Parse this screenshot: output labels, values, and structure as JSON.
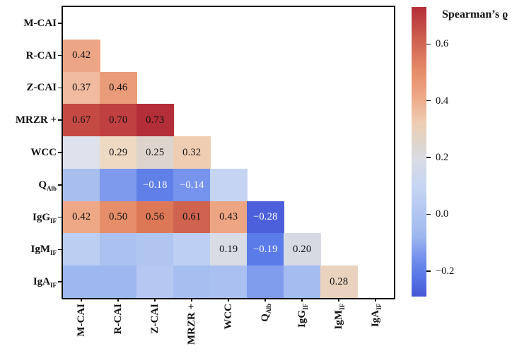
{
  "chart_data": {
    "type": "heatmap",
    "subtype": "lower-triangular-correlation-matrix",
    "categories": [
      "M-CAI",
      "R-CAI",
      "Z-CAI",
      "MRZR +",
      "WCC",
      "QAlb",
      "IgGIF",
      "IgMIF",
      "IgAIF"
    ],
    "categories_display": [
      {
        "main": "M-CAI",
        "sub": ""
      },
      {
        "main": "R-CAI",
        "sub": ""
      },
      {
        "main": "Z-CAI",
        "sub": ""
      },
      {
        "main": "MRZR +",
        "sub": ""
      },
      {
        "main": "WCC",
        "sub": ""
      },
      {
        "main": "Q",
        "sub": "Alb"
      },
      {
        "main": "IgG",
        "sub": "IF"
      },
      {
        "main": "IgM",
        "sub": "IF"
      },
      {
        "main": "IgA",
        "sub": "IF"
      }
    ],
    "cells": [
      {
        "row": 1,
        "col": 0,
        "value": 0.42,
        "label": "0.42",
        "color": "#eda685",
        "text_color": "#111111"
      },
      {
        "row": 2,
        "col": 0,
        "value": 0.37,
        "label": "0.37",
        "color": "#f0bb9e",
        "text_color": "#111111"
      },
      {
        "row": 2,
        "col": 1,
        "value": 0.46,
        "label": "0.46",
        "color": "#ea9b79",
        "text_color": "#111111"
      },
      {
        "row": 3,
        "col": 0,
        "value": 0.67,
        "label": "0.67",
        "color": "#c64a44",
        "text_color": "#111111"
      },
      {
        "row": 3,
        "col": 1,
        "value": 0.7,
        "label": "0.70",
        "color": "#c03f40",
        "text_color": "#111111"
      },
      {
        "row": 3,
        "col": 2,
        "value": 0.73,
        "label": "0.73",
        "color": "#b32e38",
        "text_color": "#111111"
      },
      {
        "row": 4,
        "col": 0,
        "value": null,
        "label": "",
        "color": "#dde2ec",
        "text_color": "#111111"
      },
      {
        "row": 4,
        "col": 1,
        "value": 0.29,
        "label": "0.29",
        "color": "#eed9c3",
        "text_color": "#111111"
      },
      {
        "row": 4,
        "col": 2,
        "value": 0.25,
        "label": "0.25",
        "color": "#ddd5cd",
        "text_color": "#111111"
      },
      {
        "row": 4,
        "col": 3,
        "value": 0.32,
        "label": "0.32",
        "color": "#eecdb3",
        "text_color": "#111111"
      },
      {
        "row": 5,
        "col": 0,
        "value": null,
        "label": "",
        "color": "#a8bfee",
        "text_color": "#111111"
      },
      {
        "row": 5,
        "col": 1,
        "value": null,
        "label": "",
        "color": "#7e9aec",
        "text_color": "#111111"
      },
      {
        "row": 5,
        "col": 2,
        "value": -0.18,
        "label": "−0.18",
        "color": "#6080e8",
        "text_color": "#ffffff"
      },
      {
        "row": 5,
        "col": 3,
        "value": -0.14,
        "label": "−0.14",
        "color": "#7693ed",
        "text_color": "#ffffff"
      },
      {
        "row": 5,
        "col": 4,
        "value": null,
        "label": "",
        "color": "#c5d4f2",
        "text_color": "#111111"
      },
      {
        "row": 6,
        "col": 0,
        "value": 0.42,
        "label": "0.42",
        "color": "#efa886",
        "text_color": "#111111"
      },
      {
        "row": 6,
        "col": 1,
        "value": 0.5,
        "label": "0.50",
        "color": "#e68e69",
        "text_color": "#111111"
      },
      {
        "row": 6,
        "col": 2,
        "value": 0.56,
        "label": "0.56",
        "color": "#dd7857",
        "text_color": "#111111"
      },
      {
        "row": 6,
        "col": 3,
        "value": 0.61,
        "label": "0.61",
        "color": "#cf6350",
        "text_color": "#111111"
      },
      {
        "row": 6,
        "col": 4,
        "value": 0.43,
        "label": "0.43",
        "color": "#eea583",
        "text_color": "#111111"
      },
      {
        "row": 6,
        "col": 5,
        "value": -0.28,
        "label": "−0.28",
        "color": "#4b60da",
        "text_color": "#ffffff"
      },
      {
        "row": 7,
        "col": 0,
        "value": null,
        "label": "",
        "color": "#bccef2",
        "text_color": "#111111"
      },
      {
        "row": 7,
        "col": 1,
        "value": null,
        "label": "",
        "color": "#abc2f0",
        "text_color": "#111111"
      },
      {
        "row": 7,
        "col": 2,
        "value": null,
        "label": "",
        "color": "#b0c6f1",
        "text_color": "#111111"
      },
      {
        "row": 7,
        "col": 3,
        "value": null,
        "label": "",
        "color": "#bdd0f3",
        "text_color": "#111111"
      },
      {
        "row": 7,
        "col": 4,
        "value": 0.19,
        "label": "0.19",
        "color": "#d9dce5",
        "text_color": "#111111"
      },
      {
        "row": 7,
        "col": 5,
        "value": -0.19,
        "label": "−0.19",
        "color": "#5b7be8",
        "text_color": "#ffffff"
      },
      {
        "row": 7,
        "col": 6,
        "value": 0.2,
        "label": "0.20",
        "color": "#d6dae3",
        "text_color": "#111111"
      },
      {
        "row": 8,
        "col": 0,
        "value": null,
        "label": "",
        "color": "#9db7ef",
        "text_color": "#111111"
      },
      {
        "row": 8,
        "col": 1,
        "value": null,
        "label": "",
        "color": "#9eb8ef",
        "text_color": "#111111"
      },
      {
        "row": 8,
        "col": 2,
        "value": null,
        "label": "",
        "color": "#b4c8f1",
        "text_color": "#111111"
      },
      {
        "row": 8,
        "col": 3,
        "value": null,
        "label": "",
        "color": "#a7bef0",
        "text_color": "#111111"
      },
      {
        "row": 8,
        "col": 4,
        "value": null,
        "label": "",
        "color": "#aac0f0",
        "text_color": "#111111"
      },
      {
        "row": 8,
        "col": 5,
        "value": null,
        "label": "",
        "color": "#809ded",
        "text_color": "#111111"
      },
      {
        "row": 8,
        "col": 6,
        "value": null,
        "label": "",
        "color": "#a4bcf0",
        "text_color": "#111111"
      },
      {
        "row": 8,
        "col": 7,
        "value": 0.28,
        "label": "0.28",
        "color": "#e9d3be",
        "text_color": "#111111"
      }
    ],
    "colorbar": {
      "label": "Spearman’s ϱ",
      "vmin": -0.29,
      "vmax": 0.73,
      "ticks": [
        {
          "v": 0.6,
          "label": "0.6"
        },
        {
          "v": 0.4,
          "label": "0.4"
        },
        {
          "v": 0.2,
          "label": "0.2"
        },
        {
          "v": 0.0,
          "label": "0.0"
        },
        {
          "v": -0.2,
          "label": "−0.2"
        }
      ],
      "gradient": [
        {
          "v": 0.73,
          "c": "#b32e38"
        },
        {
          "v": 0.61,
          "c": "#cf6350"
        },
        {
          "v": 0.5,
          "c": "#e68e69"
        },
        {
          "v": 0.42,
          "c": "#eda685"
        },
        {
          "v": 0.32,
          "c": "#eecdb3"
        },
        {
          "v": 0.25,
          "c": "#ddd5cd"
        },
        {
          "v": 0.19,
          "c": "#d9dce5"
        },
        {
          "v": 0.1,
          "c": "#c6d5f2"
        },
        {
          "v": 0.0,
          "c": "#b0c6f1"
        },
        {
          "v": -0.08,
          "c": "#9db7ef"
        },
        {
          "v": -0.14,
          "c": "#7b97ed"
        },
        {
          "v": -0.21,
          "c": "#5b7be8"
        },
        {
          "v": -0.29,
          "c": "#4657d6"
        }
      ],
      "grid": false,
      "legend_position": "right"
    }
  }
}
